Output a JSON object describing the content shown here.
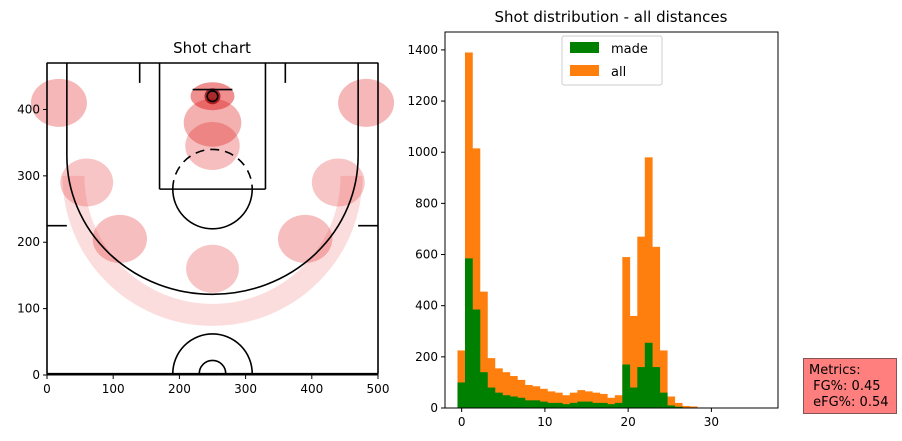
{
  "metrics": {
    "title": "Metrics:",
    "fg": " FG%: 0.45",
    "efg": " eFG%: 0.54"
  },
  "chart_data": [
    {
      "type": "heatmap",
      "title": "Shot chart",
      "xlim": [
        0,
        500
      ],
      "ylim": [
        0,
        470
      ],
      "xticks": [
        0,
        100,
        200,
        300,
        400,
        500
      ],
      "yticks": [
        0,
        100,
        200,
        300,
        400
      ],
      "colormap": "Reds",
      "hot_spots": [
        {
          "x": 250,
          "y": 420,
          "intensity": 1.0
        },
        {
          "x": 250,
          "y": 380,
          "intensity": 0.6
        },
        {
          "x": 250,
          "y": 345,
          "intensity": 0.4
        },
        {
          "x": 18,
          "y": 410,
          "intensity": 0.5
        },
        {
          "x": 482,
          "y": 410,
          "intensity": 0.5
        },
        {
          "x": 110,
          "y": 205,
          "intensity": 0.4
        },
        {
          "x": 390,
          "y": 205,
          "intensity": 0.4
        },
        {
          "x": 250,
          "y": 160,
          "intensity": 0.3
        },
        {
          "x": 60,
          "y": 290,
          "intensity": 0.3
        },
        {
          "x": 440,
          "y": 290,
          "intensity": 0.3
        }
      ]
    },
    {
      "type": "bar",
      "title": "Shot distribution - all distances",
      "xlim": [
        -2,
        38
      ],
      "ylim": [
        0,
        1470
      ],
      "xticks": [
        0,
        10,
        20,
        30
      ],
      "yticks": [
        0,
        200,
        400,
        600,
        800,
        1000,
        1200,
        1400
      ],
      "legend_position": "top-center",
      "bin_start": -0.5,
      "bin_width": 0.9,
      "series": [
        {
          "name": "all",
          "color": "#ff7f0e",
          "values": [
            225,
            1390,
            1015,
            455,
            195,
            155,
            140,
            125,
            110,
            90,
            85,
            75,
            65,
            60,
            50,
            60,
            70,
            65,
            60,
            55,
            40,
            50,
            590,
            360,
            670,
            980,
            630,
            225,
            45,
            20,
            8,
            6,
            2,
            1,
            1,
            0
          ]
        },
        {
          "name": "made",
          "color": "#008000",
          "values": [
            100,
            585,
            385,
            140,
            80,
            60,
            50,
            45,
            40,
            30,
            30,
            25,
            20,
            20,
            15,
            20,
            25,
            25,
            20,
            20,
            15,
            20,
            170,
            80,
            160,
            255,
            160,
            60,
            10,
            5,
            2,
            1,
            0,
            0,
            0,
            0
          ]
        }
      ]
    }
  ]
}
